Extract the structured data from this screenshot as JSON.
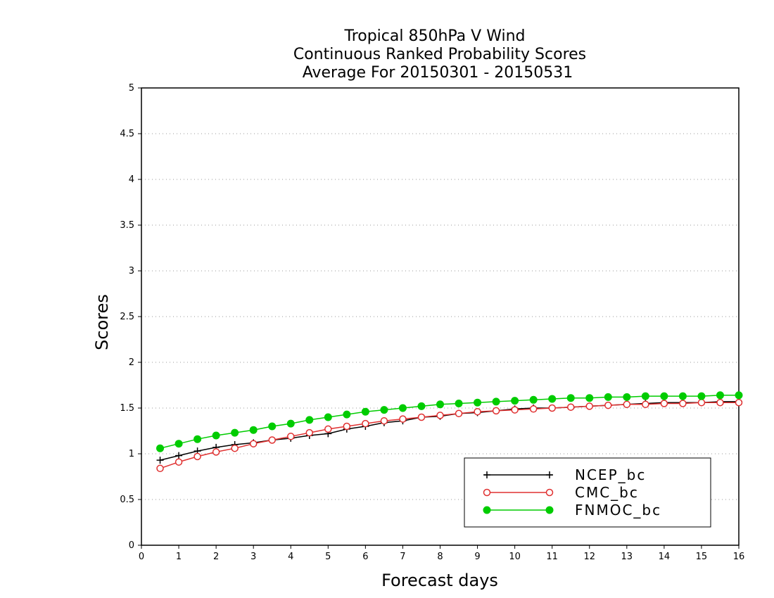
{
  "chart_data": {
    "type": "line",
    "title_lines": [
      "Tropical 850hPa V Wind",
      "Continuous Ranked Probability Scores",
      "Average For 20150301 - 20150531"
    ],
    "xlabel": "Forecast days",
    "ylabel": "Scores",
    "xlim": [
      0,
      16
    ],
    "ylim": [
      0,
      5
    ],
    "x_ticks": [
      "0",
      "1",
      "2",
      "3",
      "4",
      "5",
      "6",
      "7",
      "8",
      "9",
      "10",
      "11",
      "12",
      "13",
      "14",
      "15",
      "16"
    ],
    "y_ticks": [
      "0",
      "0.5",
      "1",
      "1.5",
      "2",
      "2.5",
      "3",
      "3.5",
      "4",
      "4.5",
      "5"
    ],
    "grid": "horizontal-dotted",
    "legend_position": "bottom-right",
    "x": [
      0.5,
      1,
      1.5,
      2,
      2.5,
      3,
      3.5,
      4,
      4.5,
      5,
      5.5,
      6,
      6.5,
      7,
      7.5,
      8,
      8.5,
      9,
      9.5,
      10,
      10.5,
      11,
      11.5,
      12,
      12.5,
      13,
      13.5,
      14,
      14.5,
      15,
      15.5,
      16
    ],
    "series": [
      {
        "name": "NCEP_bc",
        "color": "#000000",
        "marker": "plus",
        "values": [
          0.93,
          0.98,
          1.03,
          1.07,
          1.1,
          1.12,
          1.15,
          1.17,
          1.2,
          1.22,
          1.27,
          1.3,
          1.34,
          1.36,
          1.4,
          1.41,
          1.44,
          1.45,
          1.47,
          1.49,
          1.5,
          1.5,
          1.51,
          1.52,
          1.53,
          1.54,
          1.55,
          1.56,
          1.56,
          1.56,
          1.57,
          1.57
        ]
      },
      {
        "name": "CMC_bc",
        "color": "#e03030",
        "marker": "open-circle",
        "values": [
          0.84,
          0.91,
          0.97,
          1.02,
          1.06,
          1.11,
          1.15,
          1.19,
          1.23,
          1.27,
          1.3,
          1.33,
          1.36,
          1.38,
          1.4,
          1.42,
          1.44,
          1.46,
          1.47,
          1.48,
          1.49,
          1.5,
          1.51,
          1.52,
          1.53,
          1.54,
          1.54,
          1.55,
          1.55,
          1.56,
          1.56,
          1.56
        ]
      },
      {
        "name": "FNMOC_bc",
        "color": "#00cc00",
        "marker": "filled-circle",
        "values": [
          1.06,
          1.11,
          1.16,
          1.2,
          1.23,
          1.26,
          1.3,
          1.33,
          1.37,
          1.4,
          1.43,
          1.46,
          1.48,
          1.5,
          1.52,
          1.54,
          1.55,
          1.56,
          1.57,
          1.58,
          1.59,
          1.6,
          1.61,
          1.61,
          1.62,
          1.62,
          1.63,
          1.63,
          1.63,
          1.63,
          1.64,
          1.64
        ]
      }
    ]
  }
}
